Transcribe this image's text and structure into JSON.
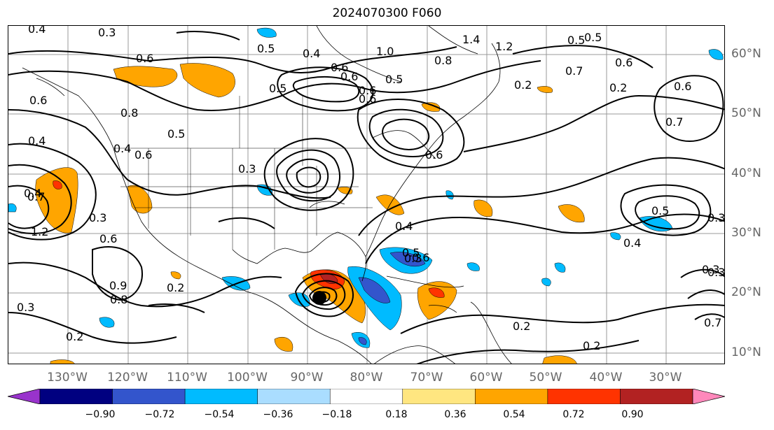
{
  "title": "2024070300 F060",
  "map": {
    "lat_labels": [
      "60°N",
      "50°N",
      "40°N",
      "30°N",
      "20°N",
      "10°N"
    ],
    "lon_labels": [
      "130°W",
      "120°W",
      "110°W",
      "100°W",
      "90°W",
      "80°W",
      "70°W",
      "60°W",
      "50°W",
      "40°W",
      "30°W"
    ],
    "contour_labels": [
      "0.4",
      "0.3",
      "0.6",
      "0.5",
      "0.4",
      "0.6",
      "1.0",
      "0.8",
      "1.4",
      "1.2",
      "0.5",
      "0.5",
      "0.6",
      "0.7",
      "0.5",
      "0.6",
      "0.7",
      "0.6",
      "0.8",
      "0.4",
      "0.6",
      "0.5",
      "0.3",
      "0.6",
      "0.4",
      "0.5",
      "0.6",
      "0.2",
      "0.7",
      "0.3",
      "0.4",
      "1.2",
      "0.3",
      "0.6",
      "0.4",
      "0.5",
      "0.3",
      "0.6",
      "0.6",
      "0.9",
      "0.8",
      "0.2",
      "0.3",
      "0.2",
      "0.2",
      "0.4",
      "0.3",
      "0.7",
      "0.5",
      "0.3",
      "0.6",
      "0.2",
      "0.2"
    ]
  },
  "colorbar": {
    "colors": [
      "#9933cc",
      "#000080",
      "#3355cc",
      "#00bbff",
      "#aaddff",
      "#ffffff",
      "#ffe680",
      "#ffa500",
      "#ff3300",
      "#b22222",
      "#ff88bb"
    ],
    "ticks": [
      "−0.90",
      "−0.72",
      "−0.54",
      "−0.36",
      "−0.18",
      "0.18",
      "0.36",
      "0.54",
      "0.72",
      "0.90"
    ]
  }
}
